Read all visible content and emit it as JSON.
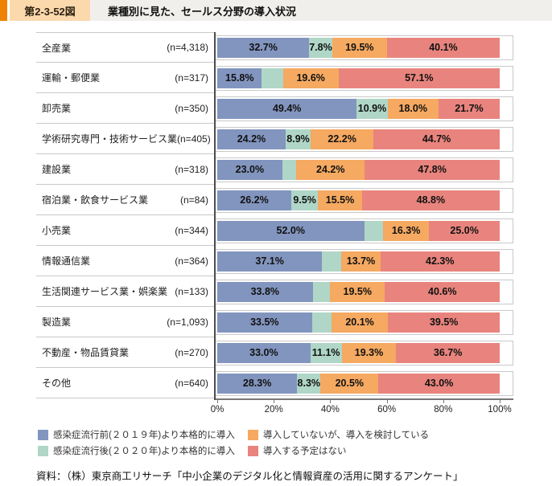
{
  "header": {
    "figure_number": "第2-3-52図",
    "title": "業種別に見た、セールス分野の導入状況"
  },
  "chart_data": {
    "type": "bar",
    "stacked": true,
    "orientation": "horizontal",
    "unit": "%",
    "xlim": [
      0,
      100
    ],
    "grid": false,
    "legend_position": "bottom",
    "series_names": [
      "感染症流行前(２０１９年)より本格的に導入",
      "感染症流行後(２０２０年)より本格的に導入",
      "導入していないが、導入を検討している",
      "導入する予定はない"
    ],
    "series_colors": [
      "#8295bf",
      "#afd6c7",
      "#f5a961",
      "#e8847d"
    ],
    "rows": [
      {
        "category": "全産業",
        "n": "(n=4,318)",
        "values": [
          32.7,
          7.8,
          19.5,
          40.1
        ],
        "labels": [
          "32.7%",
          "7.8%",
          "19.5%",
          "40.1%"
        ]
      },
      {
        "category": "運輸・郵便業",
        "n": "(n=317)",
        "values": [
          15.8,
          7.5,
          19.6,
          57.1
        ],
        "labels": [
          "15.8%",
          "",
          "19.6%",
          "57.1%"
        ]
      },
      {
        "category": "卸売業",
        "n": "(n=350)",
        "values": [
          49.4,
          10.9,
          18.0,
          21.7
        ],
        "labels": [
          "49.4%",
          "10.9%",
          "18.0%",
          "21.7%"
        ]
      },
      {
        "category": "学術研究専門・技術サービス業",
        "n": "(n=405)",
        "values": [
          24.2,
          8.9,
          22.2,
          44.7
        ],
        "labels": [
          "24.2%",
          "8.9%",
          "22.2%",
          "44.7%"
        ]
      },
      {
        "category": "建設業",
        "n": "(n=318)",
        "values": [
          23.0,
          5.0,
          24.2,
          47.8
        ],
        "labels": [
          "23.0%",
          "",
          "24.2%",
          "47.8%"
        ]
      },
      {
        "category": "宿泊業・飲食サービス業",
        "n": "(n=84)",
        "values": [
          26.2,
          9.5,
          15.5,
          48.8
        ],
        "labels": [
          "26.2%",
          "9.5%",
          "15.5%",
          "48.8%"
        ]
      },
      {
        "category": "小売業",
        "n": "(n=344)",
        "values": [
          52.0,
          6.7,
          16.3,
          25.0
        ],
        "labels": [
          "52.0%",
          "",
          "16.3%",
          "25.0%"
        ]
      },
      {
        "category": "情報通信業",
        "n": "(n=364)",
        "values": [
          37.1,
          6.9,
          13.7,
          42.3
        ],
        "labels": [
          "37.1%",
          "",
          "13.7%",
          "42.3%"
        ]
      },
      {
        "category": "生活関連サービス業・娯楽業",
        "n": "(n=133)",
        "values": [
          33.8,
          6.1,
          19.5,
          40.6
        ],
        "labels": [
          "33.8%",
          "",
          "19.5%",
          "40.6%"
        ]
      },
      {
        "category": "製造業",
        "n": "(n=1,093)",
        "values": [
          33.5,
          6.9,
          20.1,
          39.5
        ],
        "labels": [
          "33.5%",
          "",
          "20.1%",
          "39.5%"
        ]
      },
      {
        "category": "不動産・物品賃貸業",
        "n": "(n=270)",
        "values": [
          33.0,
          11.1,
          19.3,
          36.7
        ],
        "labels": [
          "33.0%",
          "11.1%",
          "19.3%",
          "36.7%"
        ]
      },
      {
        "category": "その他",
        "n": "(n=640)",
        "values": [
          28.3,
          8.3,
          20.5,
          43.0
        ],
        "labels": [
          "28.3%",
          "8.3%",
          "20.5%",
          "43.0%"
        ]
      }
    ],
    "x_ticks": [
      {
        "label": "0%",
        "pos": 0
      },
      {
        "label": "20%",
        "pos": 20
      },
      {
        "label": "40%",
        "pos": 40
      },
      {
        "label": "60%",
        "pos": 60
      },
      {
        "label": "80%",
        "pos": 80
      },
      {
        "label": "100%",
        "pos": 100
      }
    ],
    "legend": [
      {
        "label": "感染症流行前(２０１９年)より本格的に導入",
        "color": "#8295bf"
      },
      {
        "label": "感染症流行後(２０２０年)より本格的に導入",
        "color": "#afd6c7"
      },
      {
        "label": "導入していないが、導入を検討している",
        "color": "#f5a961"
      },
      {
        "label": "導入する予定はない",
        "color": "#e8847d"
      }
    ]
  },
  "source": "資料：（株）東京商工リサーチ「中小企業のデジタル化と情報資産の活用に関するアンケート」"
}
